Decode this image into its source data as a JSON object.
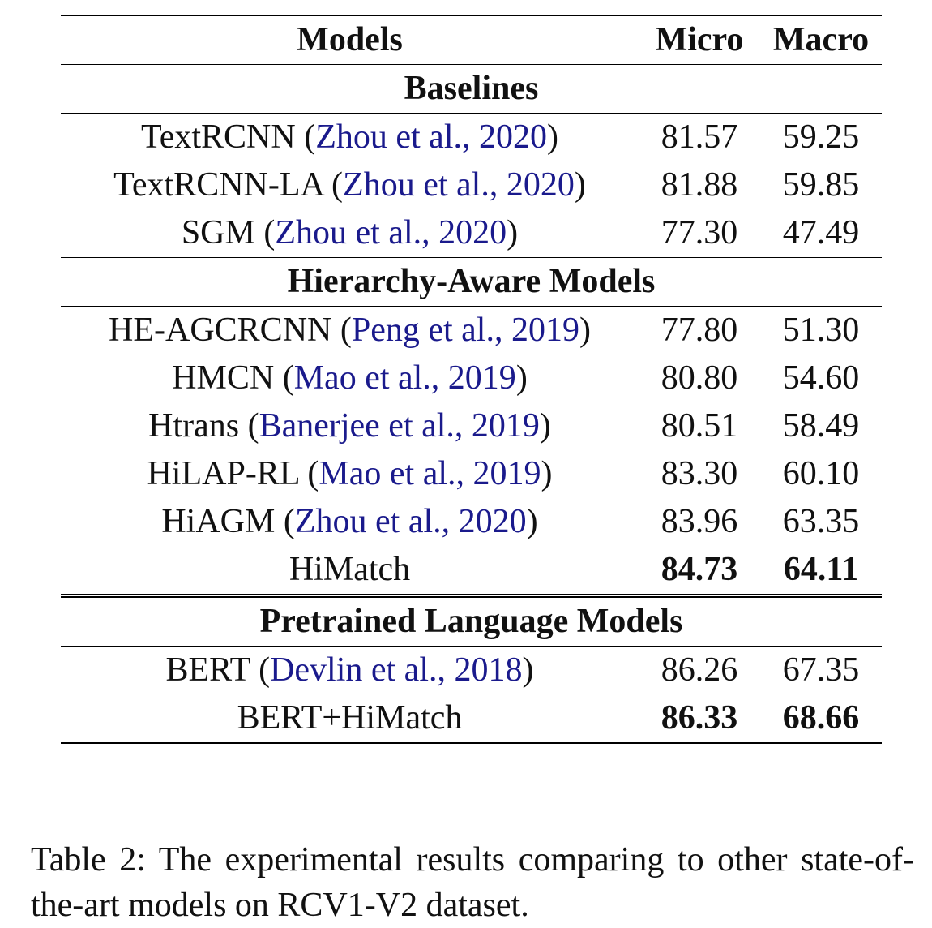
{
  "table": {
    "header": {
      "models": "Models",
      "micro": "Micro",
      "macro": "Macro"
    },
    "sections": [
      {
        "title": "Baselines",
        "rows": [
          {
            "model": "TextRCNN",
            "cite": "Zhou et al., 2020",
            "micro": "81.57",
            "macro": "59.25"
          },
          {
            "model": "TextRCNN-LA",
            "cite": "Zhou et al., 2020",
            "micro": "81.88",
            "macro": "59.85"
          },
          {
            "model": "SGM",
            "cite": "Zhou et al., 2020",
            "micro": "77.30",
            "macro": "47.49"
          }
        ]
      },
      {
        "title": "Hierarchy-Aware Models",
        "rows": [
          {
            "model": "HE-AGCRCNN",
            "cite": "Peng et al., 2019",
            "micro": "77.80",
            "macro": "51.30"
          },
          {
            "model": "HMCN",
            "cite": "Mao et al., 2019",
            "micro": "80.80",
            "macro": "54.60"
          },
          {
            "model": "Htrans",
            "cite": "Banerjee et al., 2019",
            "micro": "80.51",
            "macro": "58.49"
          },
          {
            "model": "HiLAP-RL",
            "cite": "Mao et al., 2019",
            "micro": "83.30",
            "macro": "60.10"
          },
          {
            "model": "HiAGM",
            "cite": "Zhou et al., 2020",
            "micro": "83.96",
            "macro": "63.35"
          },
          {
            "model": "HiMatch",
            "cite": "",
            "micro": "84.73",
            "macro": "64.11",
            "bold": true
          }
        ]
      },
      {
        "title": "Pretrained Language Models",
        "rows": [
          {
            "model": "BERT",
            "cite": "Devlin et al., 2018",
            "micro": "86.26",
            "macro": "67.35"
          },
          {
            "model": "BERT+HiMatch",
            "cite": "",
            "micro": "86.33",
            "macro": "68.66",
            "bold": true
          }
        ]
      }
    ]
  },
  "caption": "Table 2: The experimental results comparing to other state-of-the-art models on RCV1-V2 dataset.",
  "colors": {
    "citation": "#1a1a8c",
    "text": "#111111"
  }
}
